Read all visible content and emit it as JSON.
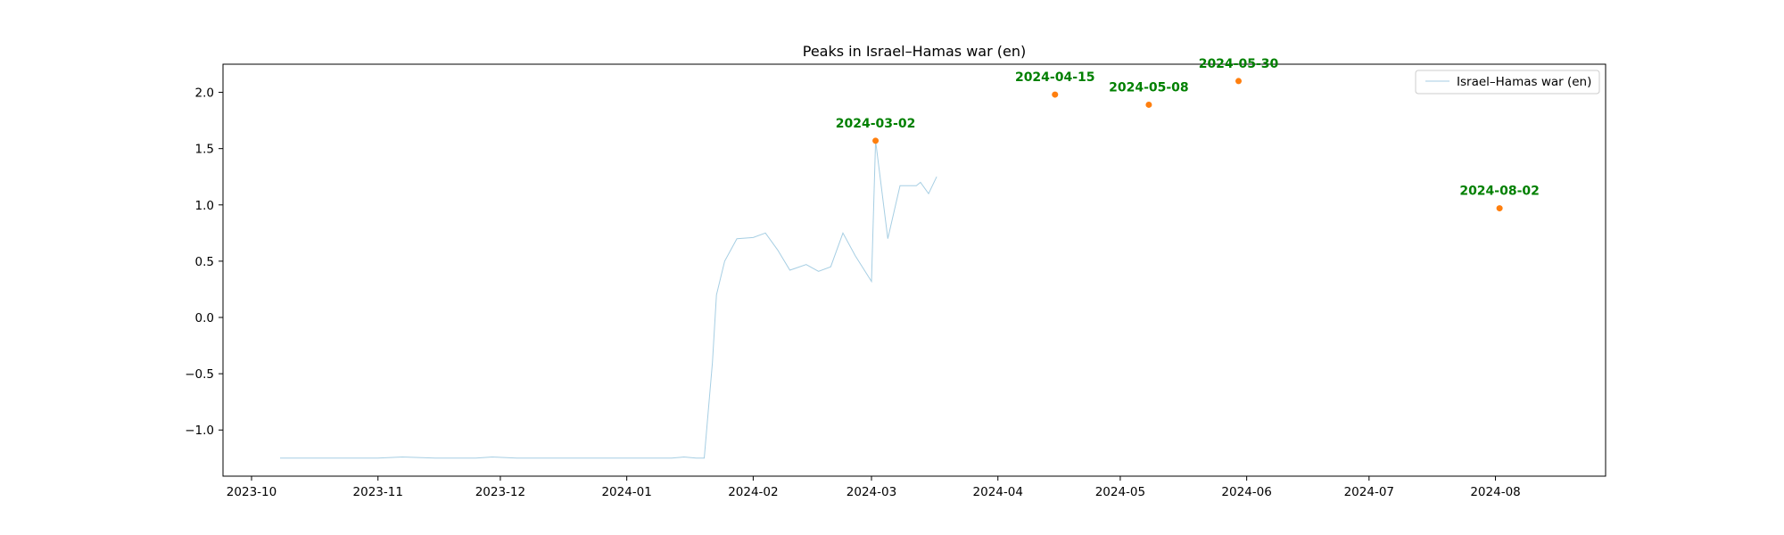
{
  "chart_data": {
    "type": "line",
    "title": "Peaks in Israel–Hamas war (en)",
    "xlabel": "",
    "ylabel": "",
    "xlim": [
      "2023-09-24",
      "2024-08-28"
    ],
    "ylim": [
      -1.41,
      2.25
    ],
    "x_ticks": [
      "2023-10",
      "2023-11",
      "2023-12",
      "2024-01",
      "2024-02",
      "2024-03",
      "2024-04",
      "2024-05",
      "2024-06",
      "2024-07",
      "2024-08"
    ],
    "y_ticks": [
      "−1.0",
      "−0.5",
      "0.0",
      "0.5",
      "1.0",
      "1.5",
      "2.0"
    ],
    "legend": {
      "position": "top-right",
      "entries": [
        "Israel–Hamas war (en)"
      ]
    },
    "grid": false,
    "colors": {
      "series": "#a6cee3",
      "peaks": "#ff7f0e",
      "peak_labels": "#008000"
    },
    "series": [
      {
        "name": "Israel–Hamas war (en)",
        "points": [
          [
            "2023-10-08",
            -1.25
          ],
          [
            "2023-10-20",
            -1.25
          ],
          [
            "2023-11-01",
            -1.25
          ],
          [
            "2023-11-07",
            -1.24
          ],
          [
            "2023-11-15",
            -1.25
          ],
          [
            "2023-11-25",
            -1.25
          ],
          [
            "2023-11-29",
            -1.24
          ],
          [
            "2023-12-05",
            -1.25
          ],
          [
            "2023-12-20",
            -1.25
          ],
          [
            "2024-01-05",
            -1.25
          ],
          [
            "2024-01-12",
            -1.25
          ],
          [
            "2024-01-15",
            -1.24
          ],
          [
            "2024-01-18",
            -1.25
          ],
          [
            "2024-01-20",
            -1.25
          ],
          [
            "2024-01-22",
            -0.4
          ],
          [
            "2024-01-23",
            0.2
          ],
          [
            "2024-01-25",
            0.5
          ],
          [
            "2024-01-28",
            0.7
          ],
          [
            "2024-02-01",
            0.71
          ],
          [
            "2024-02-04",
            0.75
          ],
          [
            "2024-02-07",
            0.6
          ],
          [
            "2024-02-10",
            0.42
          ],
          [
            "2024-02-14",
            0.47
          ],
          [
            "2024-02-17",
            0.41
          ],
          [
            "2024-02-20",
            0.45
          ],
          [
            "2024-02-23",
            0.75
          ],
          [
            "2024-02-26",
            0.55
          ],
          [
            "2024-03-01",
            0.32
          ],
          [
            "2024-03-05",
            0.7
          ],
          [
            "2024-03-08",
            1.17
          ],
          [
            "2024-03-12",
            1.17
          ],
          [
            "2024-03-13",
            1.2
          ],
          [
            "2024-03-15",
            1.1
          ],
          [
            "2024-03-17",
            1.25
          ],
          [
            "2024-03-02",
            1.57
          ]
        ],
        "peaks": [
          {
            "date": "2024-03-02",
            "value": 1.57,
            "label": "2024-03-02"
          },
          {
            "date": "2024-04-15",
            "value": 1.98,
            "label": "2024-04-15"
          },
          {
            "date": "2024-05-08",
            "value": 1.89,
            "label": "2024-05-08"
          },
          {
            "date": "2024-05-30",
            "value": 2.1,
            "label": "2024-05-30"
          },
          {
            "date": "2024-08-02",
            "value": 0.97,
            "label": "2024-08-02"
          }
        ]
      }
    ]
  }
}
